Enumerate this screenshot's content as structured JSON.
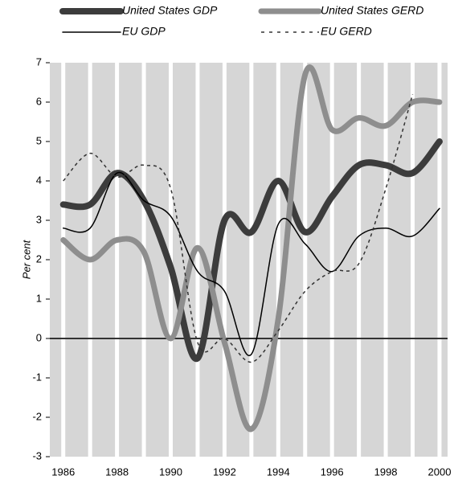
{
  "chart_data": {
    "type": "line",
    "y_label": "Per cent",
    "legend": "top",
    "grid": true,
    "x": [
      1986,
      1987,
      1988,
      1989,
      1990,
      1991,
      1992,
      1993,
      1994,
      1995,
      1996,
      1997,
      1998,
      1999,
      2000
    ],
    "xlim": [
      1985.5,
      2000.3
    ],
    "xticks": [
      1986,
      1988,
      1990,
      1992,
      1994,
      1996,
      1998,
      2000
    ],
    "ylim": [
      -3,
      7
    ],
    "yticks": [
      -3,
      -2,
      -1,
      0,
      1,
      2,
      3,
      4,
      5,
      6,
      7
    ],
    "series": [
      {
        "name": "United States GDP",
        "color": "#3c3c3c",
        "width": 8,
        "dash": false,
        "values": [
          3.4,
          3.4,
          4.2,
          3.5,
          1.8,
          -0.5,
          3.0,
          2.7,
          4.0,
          2.7,
          3.6,
          4.4,
          4.4,
          4.2,
          5.0
        ]
      },
      {
        "name": "United States GERD",
        "color": "#8e8e8e",
        "width": 7,
        "dash": false,
        "values": [
          2.5,
          2.0,
          2.5,
          2.2,
          0.0,
          2.3,
          -0.1,
          -2.3,
          0.5,
          6.7,
          5.3,
          5.6,
          5.4,
          6.0,
          6.0
        ]
      },
      {
        "name": "EU GDP",
        "color": "#000000",
        "width": 1.5,
        "dash": false,
        "values": [
          2.8,
          2.8,
          4.2,
          3.5,
          3.1,
          1.7,
          1.2,
          -0.4,
          2.9,
          2.4,
          1.7,
          2.6,
          2.8,
          2.6,
          3.3
        ]
      },
      {
        "name": "EU GERD",
        "color": "#333333",
        "width": 1.5,
        "dash": true,
        "values": [
          4.0,
          4.7,
          4.1,
          4.4,
          3.8,
          -0.1,
          0.0,
          -0.6,
          0.2,
          1.2,
          1.7,
          1.9,
          3.8,
          6.2,
          null
        ]
      }
    ]
  }
}
